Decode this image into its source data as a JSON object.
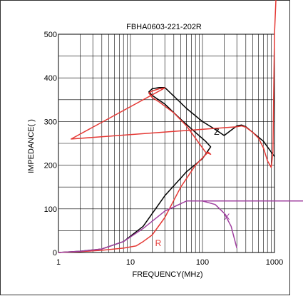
{
  "chart_data": {
    "type": "line",
    "title": "FBHA0603-221-202R",
    "xlabel": "FREQUENCY(MHz)",
    "ylabel": "IMPEDANCE(   )",
    "x_scale": "log",
    "xlim": [
      1,
      1000
    ],
    "ylim": [
      0,
      500
    ],
    "x_ticks": [
      "1",
      "10",
      "100",
      "1000"
    ],
    "y_ticks": [
      "0",
      "100",
      "200",
      "300",
      "400",
      "500"
    ],
    "grid": true,
    "colors": {
      "Z": "#000000",
      "R": "#e53935",
      "X": "#a040a0",
      "frame": "#333333",
      "grid": "#000000"
    },
    "series": [
      {
        "name": "Z",
        "color": "#000000",
        "points": [
          [
            1,
            0
          ],
          [
            2,
            3
          ],
          [
            4,
            8
          ],
          [
            8,
            25
          ],
          [
            15,
            60
          ],
          [
            30,
            130
          ],
          [
            60,
            185
          ],
          [
            100,
            215
          ],
          [
            130,
            242
          ],
          [
            110,
            255
          ],
          [
            80,
            275
          ],
          [
            50,
            305
          ],
          [
            30,
            340
          ],
          [
            20,
            360
          ],
          [
            18,
            368
          ],
          [
            20,
            375
          ],
          [
            25,
            378
          ],
          [
            30,
            378
          ],
          [
            60,
            330
          ],
          [
            100,
            300
          ],
          [
            150,
            282
          ],
          [
            200,
            268
          ],
          [
            300,
            290
          ],
          [
            350,
            292
          ],
          [
            400,
            288
          ],
          [
            500,
            275
          ],
          [
            700,
            255
          ],
          [
            900,
            230
          ],
          [
            1000,
            220
          ]
        ]
      },
      {
        "name": "R",
        "color": "#e53935",
        "points": [
          [
            1,
            0
          ],
          [
            2,
            2
          ],
          [
            4,
            5
          ],
          [
            8,
            10
          ],
          [
            12,
            15
          ],
          [
            15,
            25
          ],
          [
            20,
            40
          ],
          [
            30,
            80
          ],
          [
            50,
            150
          ],
          [
            80,
            200
          ],
          [
            120,
            230
          ],
          [
            130,
            225
          ],
          [
            110,
            230
          ],
          [
            90,
            250
          ],
          [
            60,
            290
          ],
          [
            40,
            320
          ],
          [
            25,
            345
          ],
          [
            20,
            355
          ],
          [
            18,
            365
          ],
          [
            20,
            370
          ],
          [
            25,
            375
          ],
          [
            30,
            377
          ],
          [
            1.5,
            260
          ],
          [
            300,
            288
          ],
          [
            350,
            290
          ],
          [
            400,
            287
          ],
          [
            500,
            275
          ],
          [
            600,
            262
          ],
          [
            700,
            240
          ],
          [
            800,
            210
          ],
          [
            900,
            195
          ],
          [
            950,
            230
          ],
          [
            1000,
            500
          ]
        ]
      },
      {
        "name": "X",
        "color": "#a040a0",
        "points": [
          [
            1,
            0
          ],
          [
            2,
            3
          ],
          [
            4,
            8
          ],
          [
            8,
            25
          ],
          [
            15,
            55
          ],
          [
            30,
            95
          ],
          [
            60,
            118
          ],
          [
            100,
            118
          ],
          [
            150,
            110
          ],
          [
            200,
            90
          ],
          [
            250,
            60
          ],
          [
            300,
            10
          ]
        ]
      }
    ],
    "annotations": [
      {
        "text": "Z",
        "x": 145,
        "y": 270
      },
      {
        "text": "R",
        "x": 22,
        "y": 15
      },
      {
        "text": "X",
        "x": 200,
        "y": 75
      }
    ]
  }
}
